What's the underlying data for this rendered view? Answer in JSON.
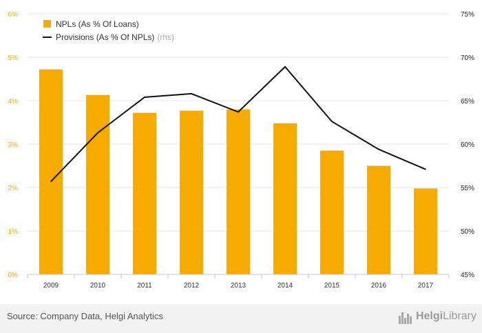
{
  "chart_data": {
    "type": "bar",
    "categories": [
      "2009",
      "2010",
      "2011",
      "2012",
      "2013",
      "2014",
      "2015",
      "2016",
      "2017"
    ],
    "series": [
      {
        "name": "NPLs (As % Of Loans)",
        "type": "bar",
        "axis": "left",
        "color": "#f5ab00",
        "values": [
          4.72,
          4.13,
          3.72,
          3.77,
          3.8,
          3.48,
          2.85,
          2.5,
          1.98
        ]
      },
      {
        "name": "Provisions (As % Of NPLs)",
        "name_suffix": "(rhs)",
        "type": "line",
        "axis": "right",
        "color": "#111111",
        "values": [
          55.7,
          61.3,
          65.4,
          65.8,
          63.7,
          68.9,
          62.6,
          59.4,
          57.1
        ]
      }
    ],
    "y_left": {
      "ylim": [
        0,
        6
      ],
      "ticks": [
        "0%",
        "1%",
        "2%",
        "3%",
        "4%",
        "5%",
        "6%"
      ],
      "color": "#f5ab00"
    },
    "y_right": {
      "ylim": [
        45,
        75
      ],
      "ticks": [
        "45%",
        "50%",
        "55%",
        "60%",
        "65%",
        "70%",
        "75%"
      ]
    },
    "grid": true,
    "legend_position": "top-left"
  },
  "footer": {
    "source": "Source: Company Data, Helgi Analytics",
    "logo_part1": "Helgi",
    "logo_part2": "Library"
  }
}
